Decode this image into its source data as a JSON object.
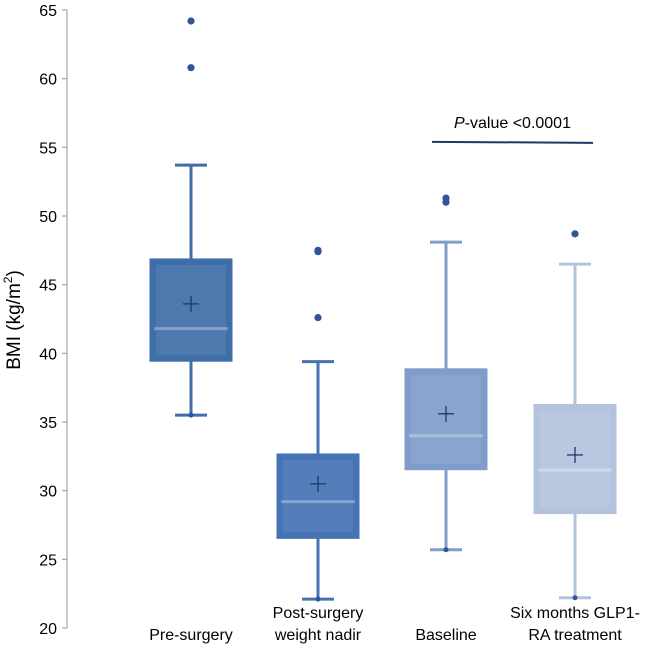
{
  "chart_data": {
    "type": "boxplot",
    "title": "",
    "ylabel": "BMI (kg/m²)",
    "ylabel_base": "BMI (kg/m",
    "ylabel_sup": "2",
    "ylabel_close": ")",
    "ylim": [
      20,
      65
    ],
    "yticks": [
      20,
      25,
      30,
      35,
      40,
      45,
      50,
      55,
      60,
      65
    ],
    "groups": [
      {
        "label_lines": [
          "Pre-surgery"
        ],
        "color": "#3f6ea8",
        "q1": 39.5,
        "median": 41.8,
        "q3": 46.8,
        "mean": 43.6,
        "whisker_low": 35.5,
        "whisker_high": 53.7,
        "outliers": [
          60.8,
          64.2
        ]
      },
      {
        "label_lines": [
          "Post-surgery",
          "weight nadir"
        ],
        "color": "#4673b3",
        "q1": 26.6,
        "median": 29.2,
        "q3": 32.6,
        "mean": 30.5,
        "whisker_low": 22.1,
        "whisker_high": 39.4,
        "outliers": [
          42.6,
          47.4,
          47.5
        ]
      },
      {
        "label_lines": [
          "Baseline"
        ],
        "color": "#7f9dcb",
        "q1": 31.6,
        "median": 34.0,
        "q3": 38.8,
        "mean": 35.6,
        "whisker_low": 25.7,
        "whisker_high": 48.1,
        "outliers": [
          51.0,
          51.3
        ]
      },
      {
        "label_lines": [
          "Six months GLP1-",
          "RA treatment"
        ],
        "color": "#b3c3de",
        "q1": 28.4,
        "median": 31.5,
        "q3": 36.2,
        "mean": 32.6,
        "whisker_low": 22.2,
        "whisker_high": 46.5,
        "outliers": [
          48.7
        ]
      }
    ],
    "annotation": {
      "p_italic": "P",
      "text": "-value <0.0001",
      "between_groups": [
        2,
        3
      ],
      "y_value": 55.4
    }
  }
}
